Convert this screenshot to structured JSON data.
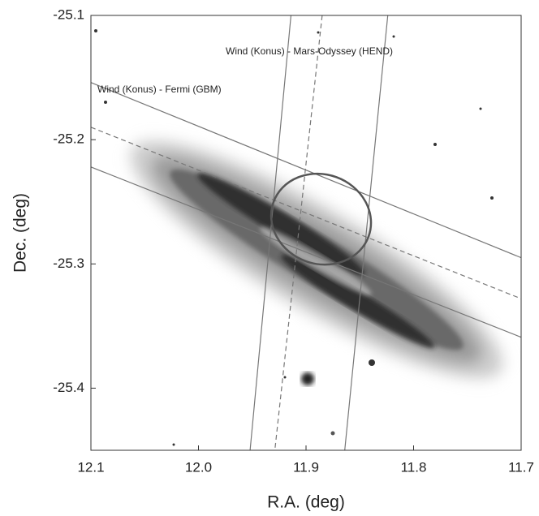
{
  "chart_data": {
    "type": "line",
    "xlabel": "R.A. (deg)",
    "ylabel": "Dec. (deg)",
    "xlim": [
      12.1,
      11.7
    ],
    "ylim": [
      -25.45,
      -25.1
    ],
    "xticks": [
      12.1,
      {
        "value": 12,
        "label": "12.0"
      },
      11.9,
      11.8,
      11.7
    ],
    "yticks": [
      -25.1,
      -25.2,
      -25.3,
      -25.4
    ],
    "annotations": [
      "Wind (Konus) - Mars-Odyssey (HEND)",
      "Wind (Konus) - Fermi (GBM)"
    ],
    "series": [
      {
        "x": [
          12.1,
          11.7
        ],
        "values": [
          -25.154,
          -25.295
        ],
        "dashed": false,
        "color": "#777"
      },
      {
        "x": [
          12.1,
          11.7
        ],
        "values": [
          -25.19,
          -25.328
        ],
        "dashed": true,
        "color": "#777"
      },
      {
        "x": [
          12.1,
          11.7
        ],
        "values": [
          -25.222,
          -25.359
        ],
        "dashed": false,
        "color": "#777"
      },
      {
        "x": [
          11.914,
          11.952
        ],
        "values": [
          -25.1,
          -25.45
        ],
        "dashed": false,
        "color": "#777"
      },
      {
        "x": [
          11.885,
          11.929
        ],
        "values": [
          -25.1,
          -25.45
        ],
        "dashed": true,
        "color": "#777"
      },
      {
        "x": [
          11.824,
          11.864
        ],
        "values": [
          -25.1,
          -25.45
        ],
        "dashed": false,
        "color": "#777"
      }
    ],
    "ellipse": {
      "x": 11.886,
      "y": -25.264,
      "rx": 0.047,
      "ry": 0.036,
      "color": "#555"
    }
  }
}
